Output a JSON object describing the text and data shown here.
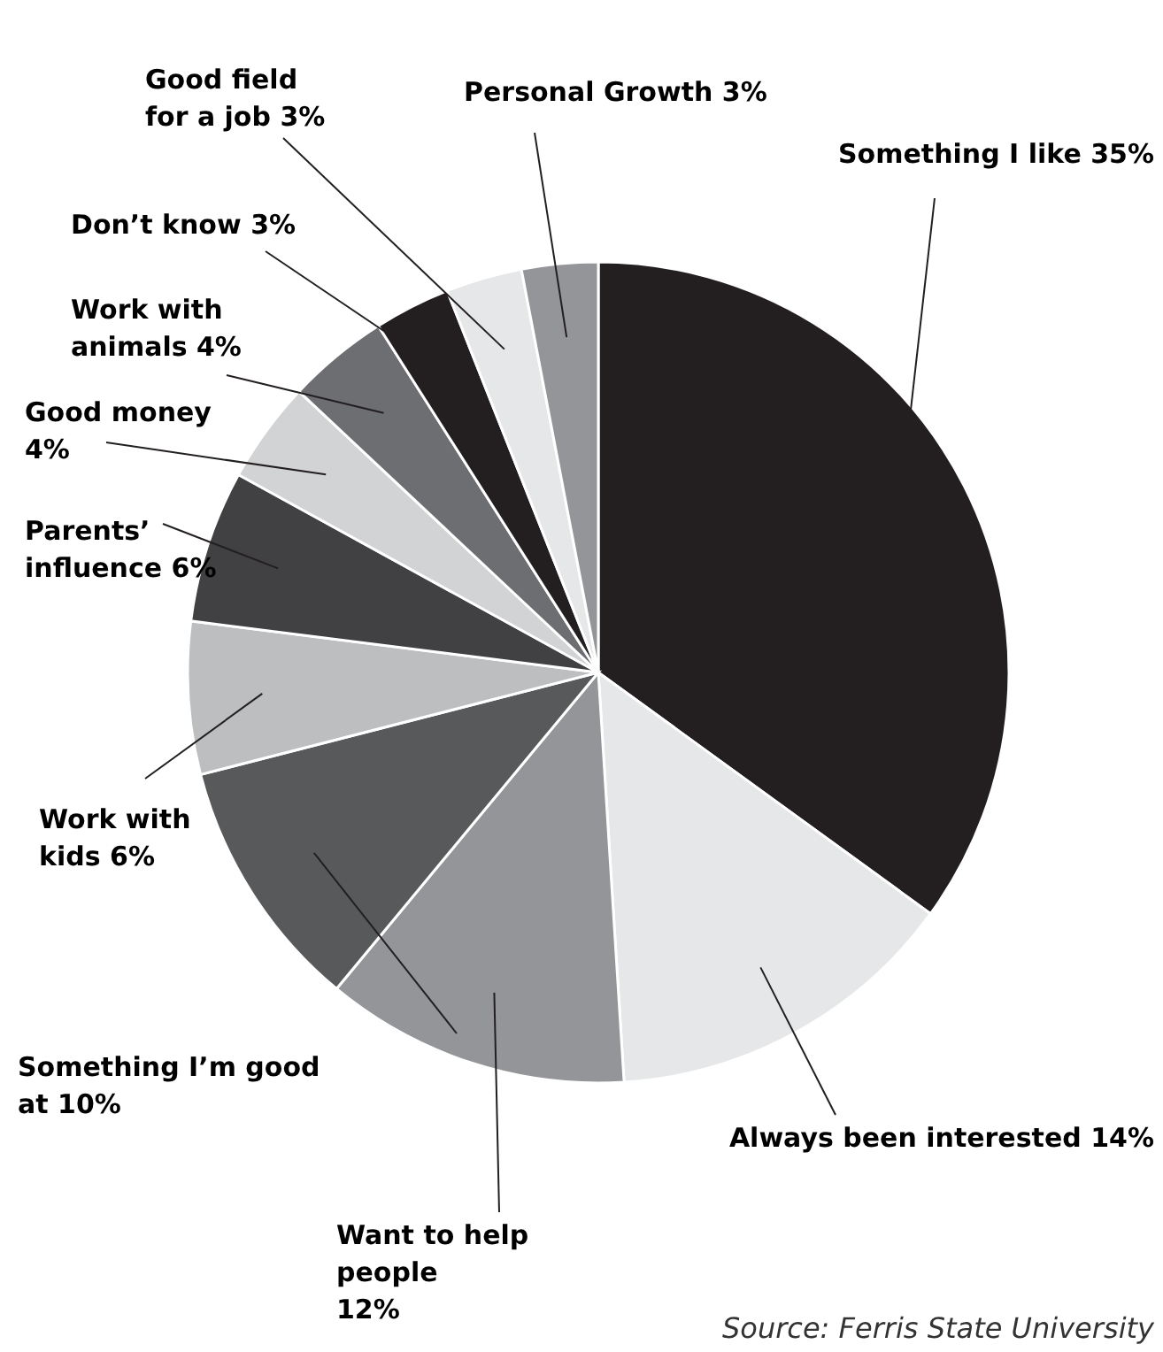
{
  "chart_data": {
    "type": "pie",
    "categories": [
      "Something I like",
      "Always been interested",
      "Want to help people",
      "Something I’m good at",
      "Work with kids",
      "Parents’ influence",
      "Good money",
      "Work with animals",
      "Don’t know",
      "Good field for a job",
      "Personal Growth"
    ],
    "values": [
      35,
      14,
      12,
      10,
      6,
      6,
      4,
      4,
      3,
      3,
      3
    ],
    "value_labels": [
      "35%",
      "14%",
      "12%",
      "10%",
      "6%",
      "6%",
      "4%",
      "4%",
      "3%",
      "3%",
      "3%"
    ],
    "colors": [
      "#231f20",
      "#e6e7e8",
      "#939598",
      "#58595b",
      "#bcbec0",
      "#414042",
      "#d1d3d4",
      "#6d6e71",
      "#231f20",
      "#e6e7e8",
      "#939598"
    ],
    "annotations": [
      "Source: Ferris State University"
    ]
  }
}
